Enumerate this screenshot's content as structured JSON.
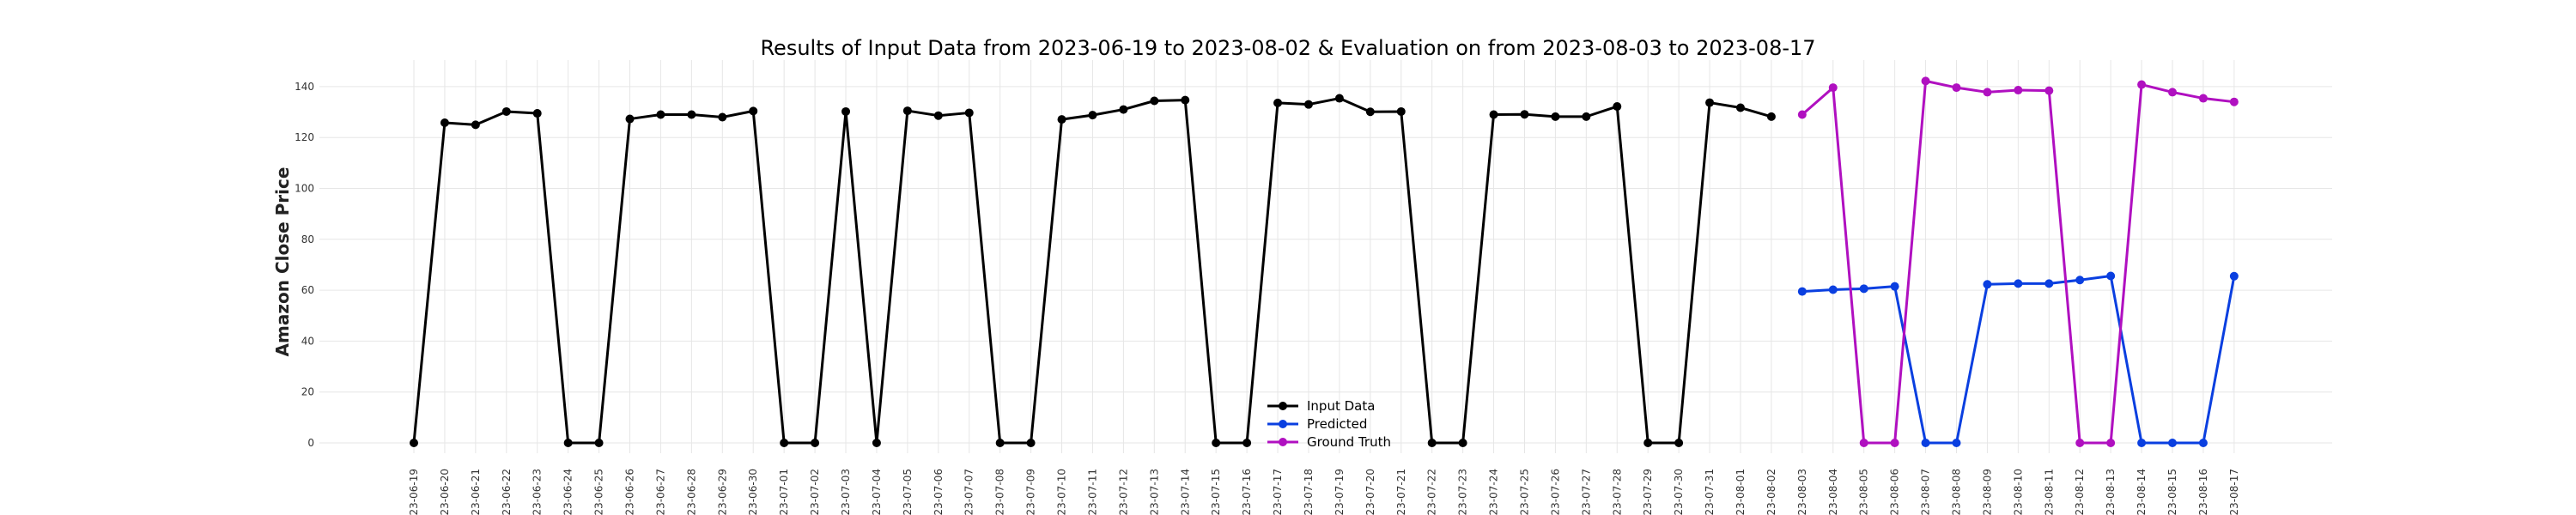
{
  "chart_data": {
    "type": "line",
    "title": "Results of Input Data from 2023-06-19 to 2023-08-02 & Evaluation on from 2023-08-03 to 2023-08-17",
    "xlabel": "",
    "ylabel": "Amazon Close Price",
    "ylim": [
      0,
      140
    ],
    "yticks": [
      0,
      20,
      40,
      60,
      80,
      100,
      120,
      140
    ],
    "grid": true,
    "legend_position": "lower-center",
    "x": [
      "2023-06-19",
      "2023-06-20",
      "2023-06-21",
      "2023-06-22",
      "2023-06-23",
      "2023-06-24",
      "2023-06-25",
      "2023-06-26",
      "2023-06-27",
      "2023-06-28",
      "2023-06-29",
      "2023-06-30",
      "2023-07-01",
      "2023-07-02",
      "2023-07-03",
      "2023-07-04",
      "2023-07-05",
      "2023-07-06",
      "2023-07-07",
      "2023-07-08",
      "2023-07-09",
      "2023-07-10",
      "2023-07-11",
      "2023-07-12",
      "2023-07-13",
      "2023-07-14",
      "2023-07-15",
      "2023-07-16",
      "2023-07-17",
      "2023-07-18",
      "2023-07-19",
      "2023-07-20",
      "2023-07-21",
      "2023-07-22",
      "2023-07-23",
      "2023-07-24",
      "2023-07-25",
      "2023-07-26",
      "2023-07-27",
      "2023-07-28",
      "2023-07-29",
      "2023-07-30",
      "2023-07-31",
      "2023-08-01",
      "2023-08-02",
      "2023-08-03",
      "2023-08-04",
      "2023-08-05",
      "2023-08-06",
      "2023-08-07",
      "2023-08-08",
      "2023-08-09",
      "2023-08-10",
      "2023-08-11",
      "2023-08-12",
      "2023-08-13",
      "2023-08-14",
      "2023-08-15",
      "2023-08-16",
      "2023-08-17"
    ],
    "tick_labels": [
      "-23-06-19",
      "-23-06-20",
      "-23-06-21",
      "-23-06-22",
      "-23-06-23",
      "-23-06-24",
      "-23-06-25",
      "-23-06-26",
      "-23-06-27",
      "-23-06-28",
      "-23-06-29",
      "-23-06-30",
      "-23-07-01",
      "-23-07-02",
      "-23-07-03",
      "-23-07-04",
      "-23-07-05",
      "-23-07-06",
      "-23-07-07",
      "-23-07-08",
      "-23-07-09",
      "-23-07-10",
      "-23-07-11",
      "-23-07-12",
      "-23-07-13",
      "-23-07-14",
      "-23-07-15",
      "-23-07-16",
      "-23-07-17",
      "-23-07-18",
      "-23-07-19",
      "-23-07-20",
      "-23-07-21",
      "-23-07-22",
      "-23-07-23",
      "-23-07-24",
      "-23-07-25",
      "-23-07-26",
      "-23-07-27",
      "-23-07-28",
      "-23-07-29",
      "-23-07-30",
      "-23-07-31",
      "-23-08-01",
      "-23-08-02",
      "023-08-03",
      "023-08-04",
      "023-08-05",
      "023-08-06",
      "023-08-07",
      "023-08-08",
      "023-08-09",
      "023-08-10",
      "023-08-11",
      "023-08-12",
      "023-08-13",
      "023-08-14",
      "023-08-15",
      "023-08-16",
      "023-08-17"
    ],
    "series": [
      {
        "name": "Input Data",
        "color": "#000000",
        "x": [
          "2023-06-19",
          "2023-06-20",
          "2023-06-21",
          "2023-06-22",
          "2023-06-23",
          "2023-06-24",
          "2023-06-25",
          "2023-06-26",
          "2023-06-27",
          "2023-06-28",
          "2023-06-29",
          "2023-06-30",
          "2023-07-01",
          "2023-07-02",
          "2023-07-03",
          "2023-07-04",
          "2023-07-05",
          "2023-07-06",
          "2023-07-07",
          "2023-07-08",
          "2023-07-09",
          "2023-07-10",
          "2023-07-11",
          "2023-07-12",
          "2023-07-13",
          "2023-07-14",
          "2023-07-15",
          "2023-07-16",
          "2023-07-17",
          "2023-07-18",
          "2023-07-19",
          "2023-07-20",
          "2023-07-21",
          "2023-07-22",
          "2023-07-23",
          "2023-07-24",
          "2023-07-25",
          "2023-07-26",
          "2023-07-27",
          "2023-07-28",
          "2023-07-29",
          "2023-07-30",
          "2023-07-31",
          "2023-08-01",
          "2023-08-02"
        ],
        "values": [
          0,
          125.8,
          125.0,
          130.2,
          129.5,
          0,
          0,
          127.3,
          129.0,
          129.0,
          128.0,
          130.4,
          0,
          0,
          130.2,
          0,
          130.5,
          128.6,
          129.7,
          0,
          0,
          127.1,
          128.8,
          131.0,
          134.4,
          134.7,
          0,
          0,
          133.6,
          133.0,
          135.4,
          130.1,
          130.2,
          0,
          0,
          129.0,
          129.1,
          128.2,
          128.2,
          132.2,
          0,
          0,
          133.7,
          131.7,
          128.2
        ]
      },
      {
        "name": "Predicted",
        "color": "#0a3fe0",
        "x": [
          "2023-08-03",
          "2023-08-04",
          "2023-08-05",
          "2023-08-06",
          "2023-08-07",
          "2023-08-08",
          "2023-08-09",
          "2023-08-10",
          "2023-08-11",
          "2023-08-12",
          "2023-08-13",
          "2023-08-14",
          "2023-08-15",
          "2023-08-16",
          "2023-08-17"
        ],
        "values": [
          59.5,
          60.2,
          60.6,
          61.5,
          0,
          0,
          62.3,
          62.6,
          62.6,
          64.0,
          65.6,
          0,
          0,
          0,
          65.5
        ]
      },
      {
        "name": "Ground Truth",
        "color": "#b010c0",
        "x": [
          "2023-08-03",
          "2023-08-04",
          "2023-08-05",
          "2023-08-06",
          "2023-08-07",
          "2023-08-08",
          "2023-08-09",
          "2023-08-10",
          "2023-08-11",
          "2023-08-12",
          "2023-08-13",
          "2023-08-14",
          "2023-08-15",
          "2023-08-16",
          "2023-08-17"
        ],
        "values": [
          129.0,
          139.6,
          0,
          0,
          142.2,
          139.6,
          137.8,
          138.6,
          138.4,
          0,
          0,
          140.8,
          137.8,
          135.4,
          134.0
        ]
      }
    ]
  }
}
